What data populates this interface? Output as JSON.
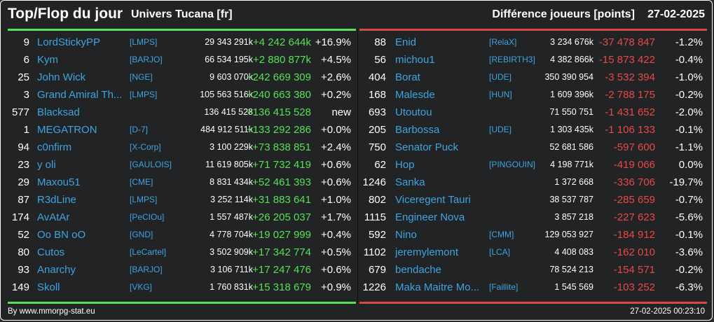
{
  "header": {
    "title": "Top/Flop du jour",
    "universe": "Univers Tucana [fr]",
    "metric": "Différence joueurs [points]",
    "date": "27-02-2025"
  },
  "colors": {
    "positive": "#55e055",
    "negative": "#e84848",
    "link": "#3ea4e0"
  },
  "top": [
    {
      "rank": "9",
      "name": "LordStickyPP",
      "guild": "[LMPS]",
      "score": "29 343 291k",
      "diff": "+4 242 644k",
      "pct": "+16.9%"
    },
    {
      "rank": "6",
      "name": "Kym",
      "guild": "[BARJO]",
      "score": "66 534 195k",
      "diff": "+2 880 877k",
      "pct": "+4.5%"
    },
    {
      "rank": "25",
      "name": "John Wick",
      "guild": "[NGE]",
      "score": "9 603 070k",
      "diff": "+242 669 309",
      "pct": "+2.6%"
    },
    {
      "rank": "3",
      "name": "Grand Amiral Th...",
      "guild": "[LMPS]",
      "score": "105 563 516k",
      "diff": "+240 663 380",
      "pct": "+0.2%"
    },
    {
      "rank": "577",
      "name": "Blacksad",
      "guild": "",
      "score": "136 415 528",
      "diff": "+136 415 528",
      "pct": "new"
    },
    {
      "rank": "1",
      "name": "MEGATRON",
      "guild": "[D-7]",
      "score": "484 912 511k",
      "diff": "+133 292 286",
      "pct": "+0.0%"
    },
    {
      "rank": "94",
      "name": "c0nfirm",
      "guild": "[X-Corp]",
      "score": "3 100 229k",
      "diff": "+73 838 851",
      "pct": "+2.4%"
    },
    {
      "rank": "23",
      "name": "y oli",
      "guild": "[GAULOIS]",
      "score": "11 619 805k",
      "diff": "+71 732 419",
      "pct": "+0.6%"
    },
    {
      "rank": "29",
      "name": "Maxou51",
      "guild": "[CME]",
      "score": "8 831 434k",
      "diff": "+52 461 393",
      "pct": "+0.6%"
    },
    {
      "rank": "87",
      "name": "R3dLine",
      "guild": "[LMPS]",
      "score": "3 252 114k",
      "diff": "+31 883 641",
      "pct": "+1.0%"
    },
    {
      "rank": "174",
      "name": "AvAtAr",
      "guild": "[PeCIOu]",
      "score": "1 557 487k",
      "diff": "+26 205 037",
      "pct": "+1.7%"
    },
    {
      "rank": "52",
      "name": "Oo BN oO",
      "guild": "[GND]",
      "score": "4 778 704k",
      "diff": "+19 027 999",
      "pct": "+0.4%"
    },
    {
      "rank": "80",
      "name": "Cutos",
      "guild": "[LeCartel]",
      "score": "3 502 909k",
      "diff": "+17 342 774",
      "pct": "+0.5%"
    },
    {
      "rank": "93",
      "name": "Anarchy",
      "guild": "[BARJO]",
      "score": "3 106 711k",
      "diff": "+17 247 476",
      "pct": "+0.6%"
    },
    {
      "rank": "149",
      "name": "Skoll",
      "guild": "[VKG]",
      "score": "1 760 831k",
      "diff": "+15 318 679",
      "pct": "+0.9%"
    }
  ],
  "flop": [
    {
      "rank": "88",
      "name": "Enid",
      "guild": "[RelaX]",
      "score": "3 234 676k",
      "diff": "-37 478 847",
      "pct": "-1.2%"
    },
    {
      "rank": "56",
      "name": "michou1",
      "guild": "[REBIRTH3]",
      "score": "4 382 866k",
      "diff": "-15 873 422",
      "pct": "-0.4%"
    },
    {
      "rank": "404",
      "name": "Borat",
      "guild": "[UDE]",
      "score": "350 390 954",
      "diff": "-3 532 394",
      "pct": "-1.0%"
    },
    {
      "rank": "168",
      "name": "Malesde",
      "guild": "[HUN]",
      "score": "1 609 396k",
      "diff": "-2 788 175",
      "pct": "-0.2%"
    },
    {
      "rank": "693",
      "name": "Utoutou",
      "guild": "",
      "score": "71 550 751",
      "diff": "-1 431 652",
      "pct": "-2.0%"
    },
    {
      "rank": "205",
      "name": "Barbossa",
      "guild": "[UDE]",
      "score": "1 303 435k",
      "diff": "-1 106 133",
      "pct": "-0.1%"
    },
    {
      "rank": "750",
      "name": "Senator Puck",
      "guild": "",
      "score": "52 681 586",
      "diff": "-597 600",
      "pct": "-1.1%"
    },
    {
      "rank": "62",
      "name": "Hop",
      "guild": "[PINGOUIN]",
      "score": "4 198 771k",
      "diff": "-419 066",
      "pct": "0.0%"
    },
    {
      "rank": "1246",
      "name": "Sanka",
      "guild": "",
      "score": "1 372 668",
      "diff": "-336 706",
      "pct": "-19.7%"
    },
    {
      "rank": "802",
      "name": "Viceregent Tauri",
      "guild": "",
      "score": "38 537 787",
      "diff": "-285 659",
      "pct": "-0.7%"
    },
    {
      "rank": "1115",
      "name": "Engineer Nova",
      "guild": "",
      "score": "3 857 218",
      "diff": "-227 623",
      "pct": "-5.6%"
    },
    {
      "rank": "592",
      "name": "Nino",
      "guild": "[CMM]",
      "score": "129 053 927",
      "diff": "-184 912",
      "pct": "-0.1%"
    },
    {
      "rank": "1102",
      "name": "jeremylemont",
      "guild": "[LCA]",
      "score": "4 408 083",
      "diff": "-162 010",
      "pct": "-3.6%"
    },
    {
      "rank": "679",
      "name": "bendache",
      "guild": "",
      "score": "78 524 213",
      "diff": "-154 571",
      "pct": "-0.2%"
    },
    {
      "rank": "1226",
      "name": "Maka Maitre Mo...",
      "guild": "[Faillite]",
      "score": "1 545 569",
      "diff": "-103 252",
      "pct": "-6.3%"
    }
  ],
  "footer": {
    "source": "By www.mmorpg-stat.eu",
    "timestamp": "27-02-2025 00:23:10"
  }
}
